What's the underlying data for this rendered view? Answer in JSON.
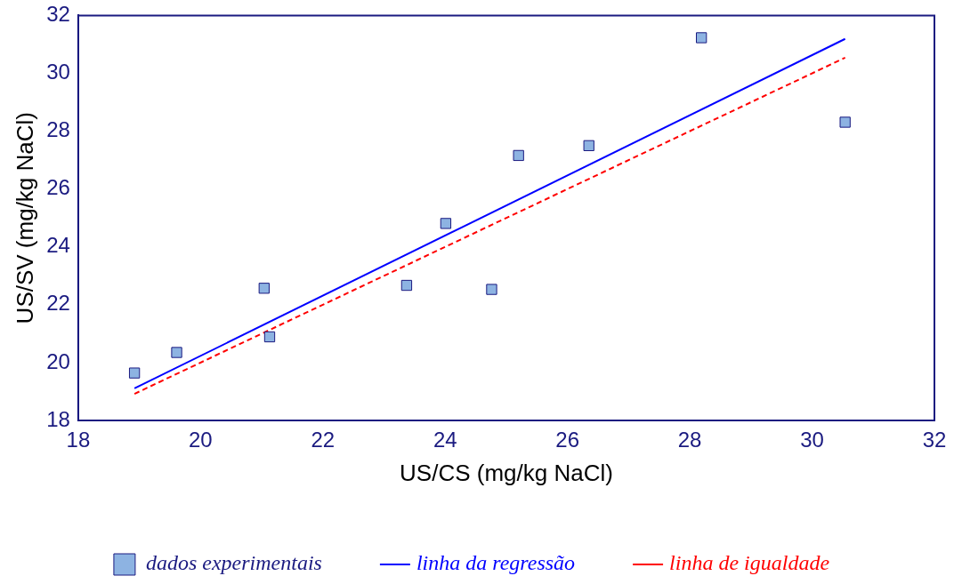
{
  "chart_data": {
    "type": "scatter",
    "xlabel": "US/CS (mg/kg NaCl)",
    "ylabel": "US/SV (mg/kg NaCl)",
    "xlim": [
      18,
      32
    ],
    "xticks": [
      18,
      20,
      22,
      24,
      26,
      28,
      30,
      32
    ],
    "ylim": [
      18,
      32
    ],
    "yticks": [
      18,
      20,
      22,
      24,
      26,
      28,
      30,
      32
    ],
    "grid": false,
    "legend": "bottom",
    "series": [
      {
        "name": "dados experimentais",
        "type": "scatter",
        "marker": "square",
        "color": "#8db3e2",
        "x": [
          18.92,
          19.61,
          21.04,
          21.13,
          23.37,
          24.01,
          24.76,
          25.2,
          26.35,
          28.19,
          30.54
        ],
        "values": [
          19.64,
          20.35,
          22.57,
          20.89,
          22.67,
          24.81,
          22.53,
          27.16,
          27.5,
          31.23,
          28.31
        ]
      },
      {
        "name": "linha da regressão",
        "type": "line",
        "color": "#0000ff",
        "line_style": "solid",
        "marker": "none",
        "x": [
          18.92,
          30.54
        ],
        "values": [
          19.11,
          31.19
        ]
      },
      {
        "name": "linha de igualdade",
        "type": "line",
        "color": "#ff0000",
        "line_style": "dashed",
        "marker": "none",
        "x": [
          18.92,
          30.54
        ],
        "values": [
          18.92,
          30.54
        ]
      }
    ]
  }
}
